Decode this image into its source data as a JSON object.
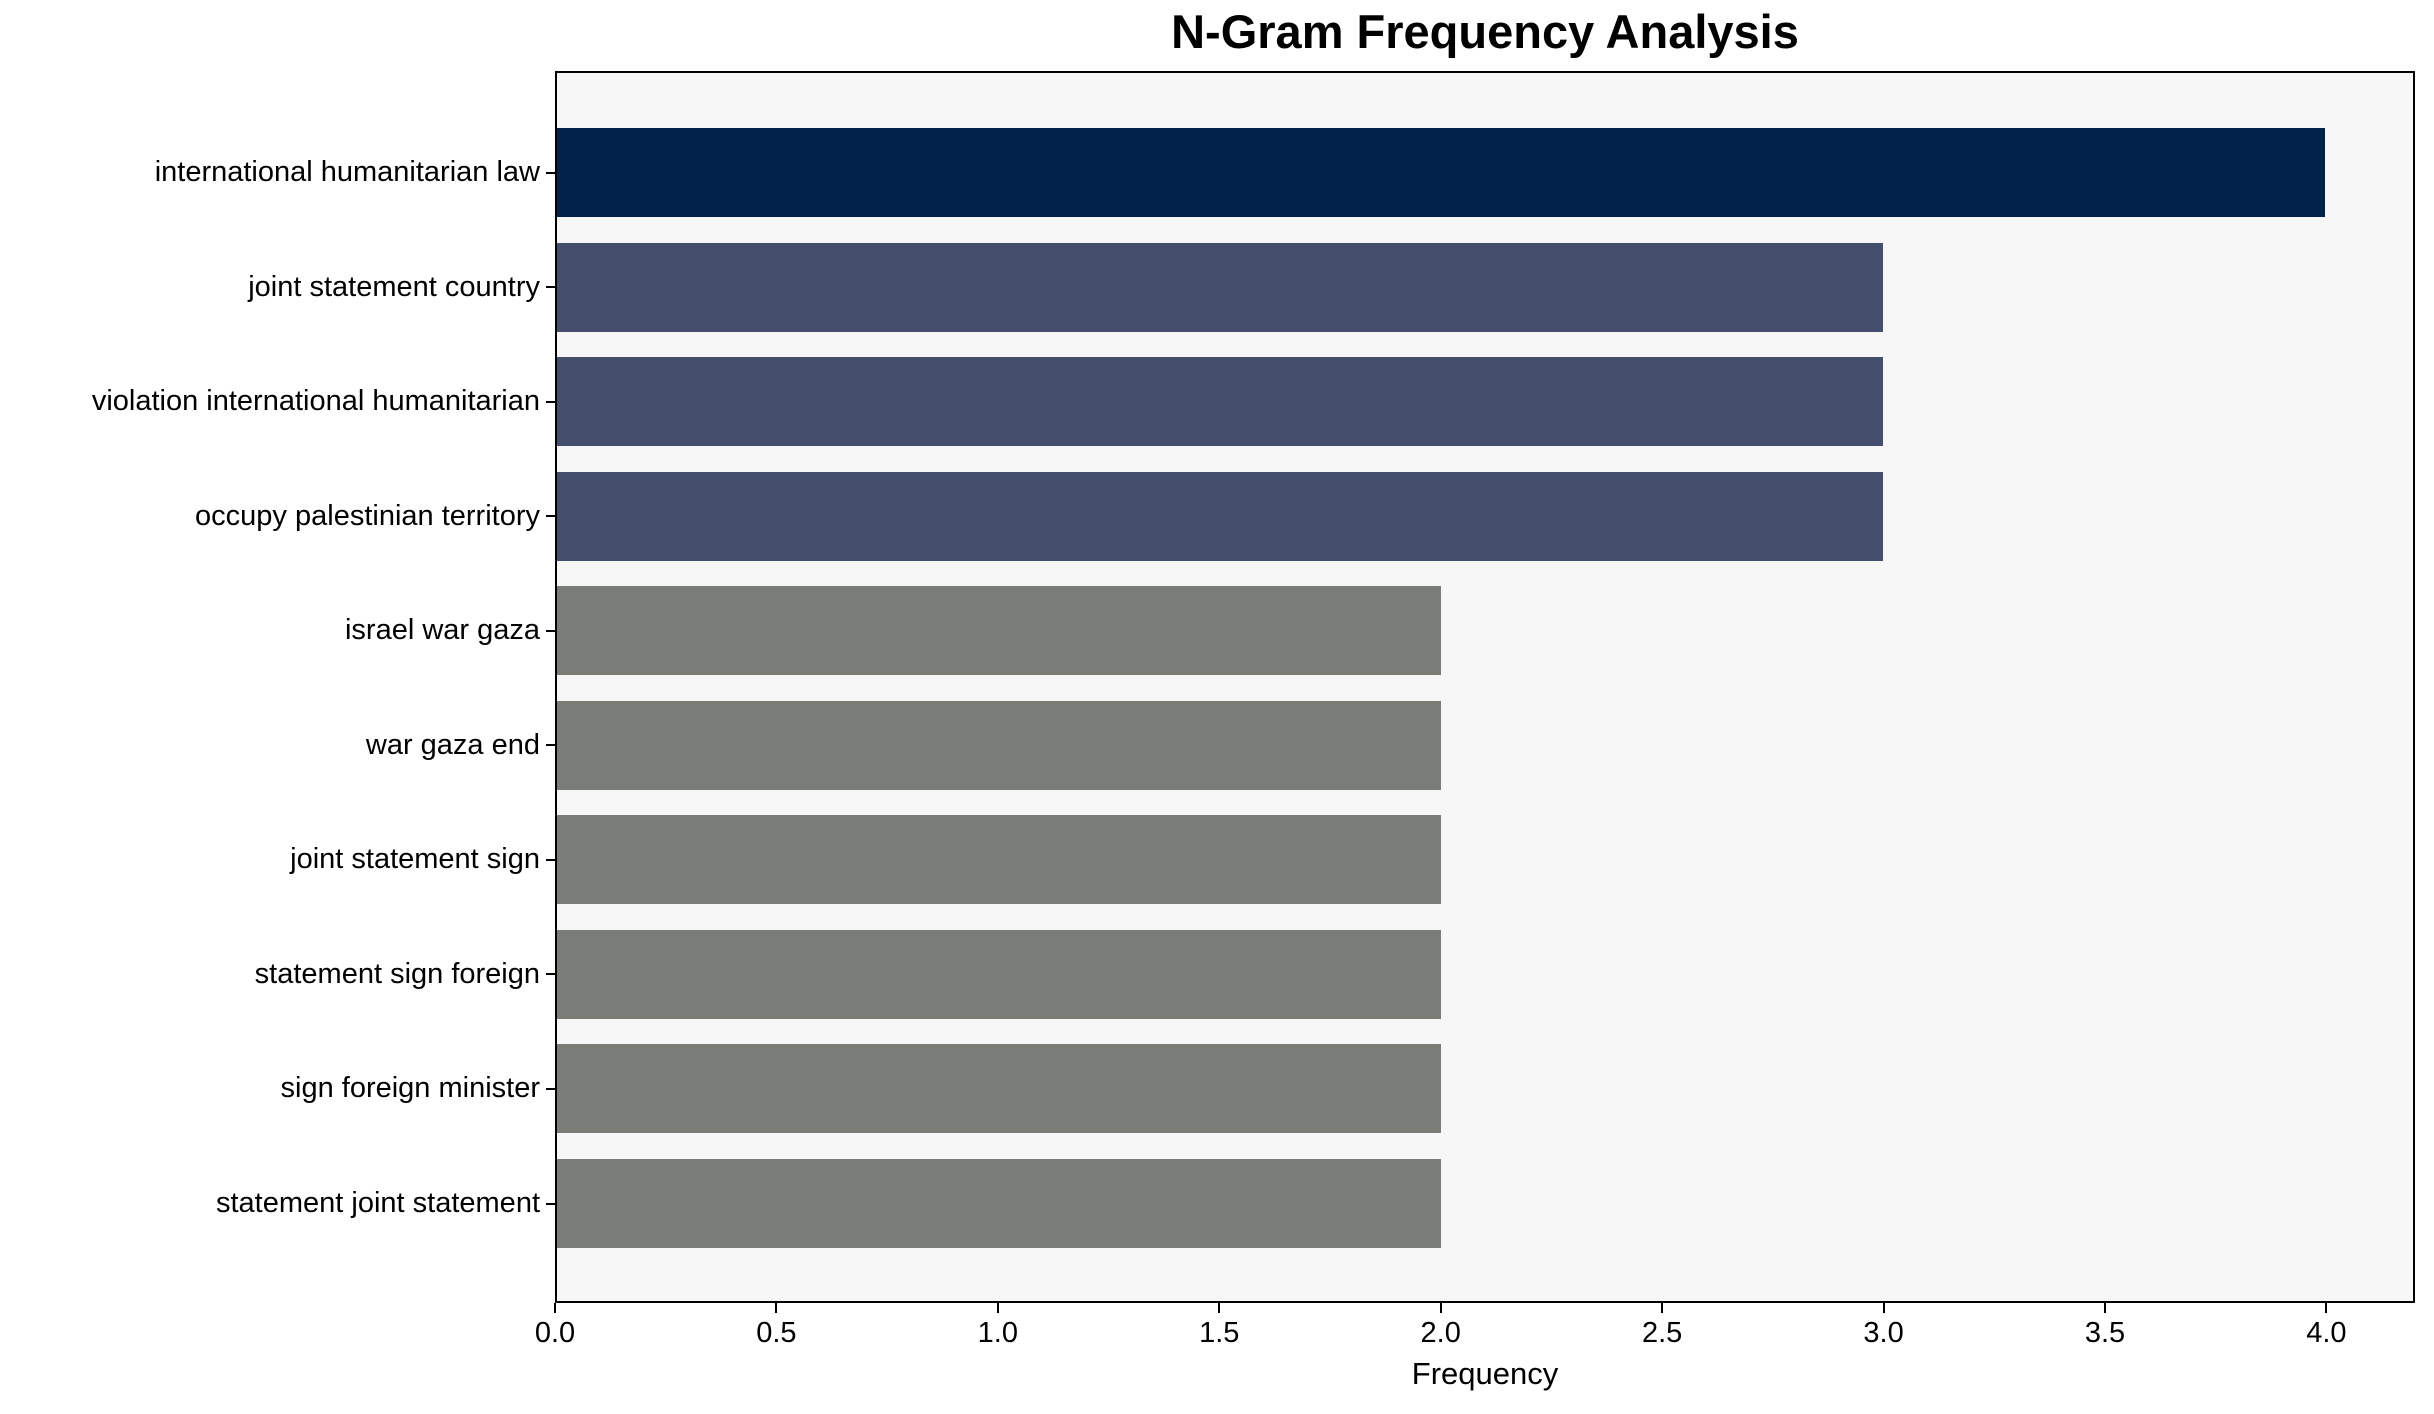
{
  "chart_data": {
    "type": "bar",
    "orientation": "horizontal",
    "title": "N-Gram Frequency Analysis",
    "xlabel": "Frequency",
    "ylabel": "",
    "categories": [
      "international humanitarian law",
      "joint statement country",
      "violation international humanitarian",
      "occupy palestinian territory",
      "israel war gaza",
      "war gaza end",
      "joint statement sign",
      "statement sign foreign",
      "sign foreign minister",
      "statement joint statement"
    ],
    "values": [
      4,
      3,
      3,
      3,
      2,
      2,
      2,
      2,
      2,
      2
    ],
    "bar_colors": [
      "#03224a",
      "#454f6d",
      "#454f6d",
      "#454f6d",
      "#7a7c77",
      "#7a7c77",
      "#7a7c77",
      "#7a7c77",
      "#7a7c77",
      "#7a7c77"
    ],
    "xlim": [
      0,
      4.2
    ],
    "xticks": [
      "0.0",
      "0.5",
      "1.0",
      "1.5",
      "2.0",
      "2.5",
      "3.0",
      "3.5",
      "4.0"
    ],
    "xtick_values": [
      0,
      0.5,
      1,
      1.5,
      2,
      2.5,
      3,
      3.5,
      4
    ],
    "grid": false,
    "legend": null,
    "colors": {
      "plot_bg": "#f7f7f7",
      "figure_bg": "#ffffff",
      "spine": "#000000",
      "text": "#000000"
    }
  }
}
